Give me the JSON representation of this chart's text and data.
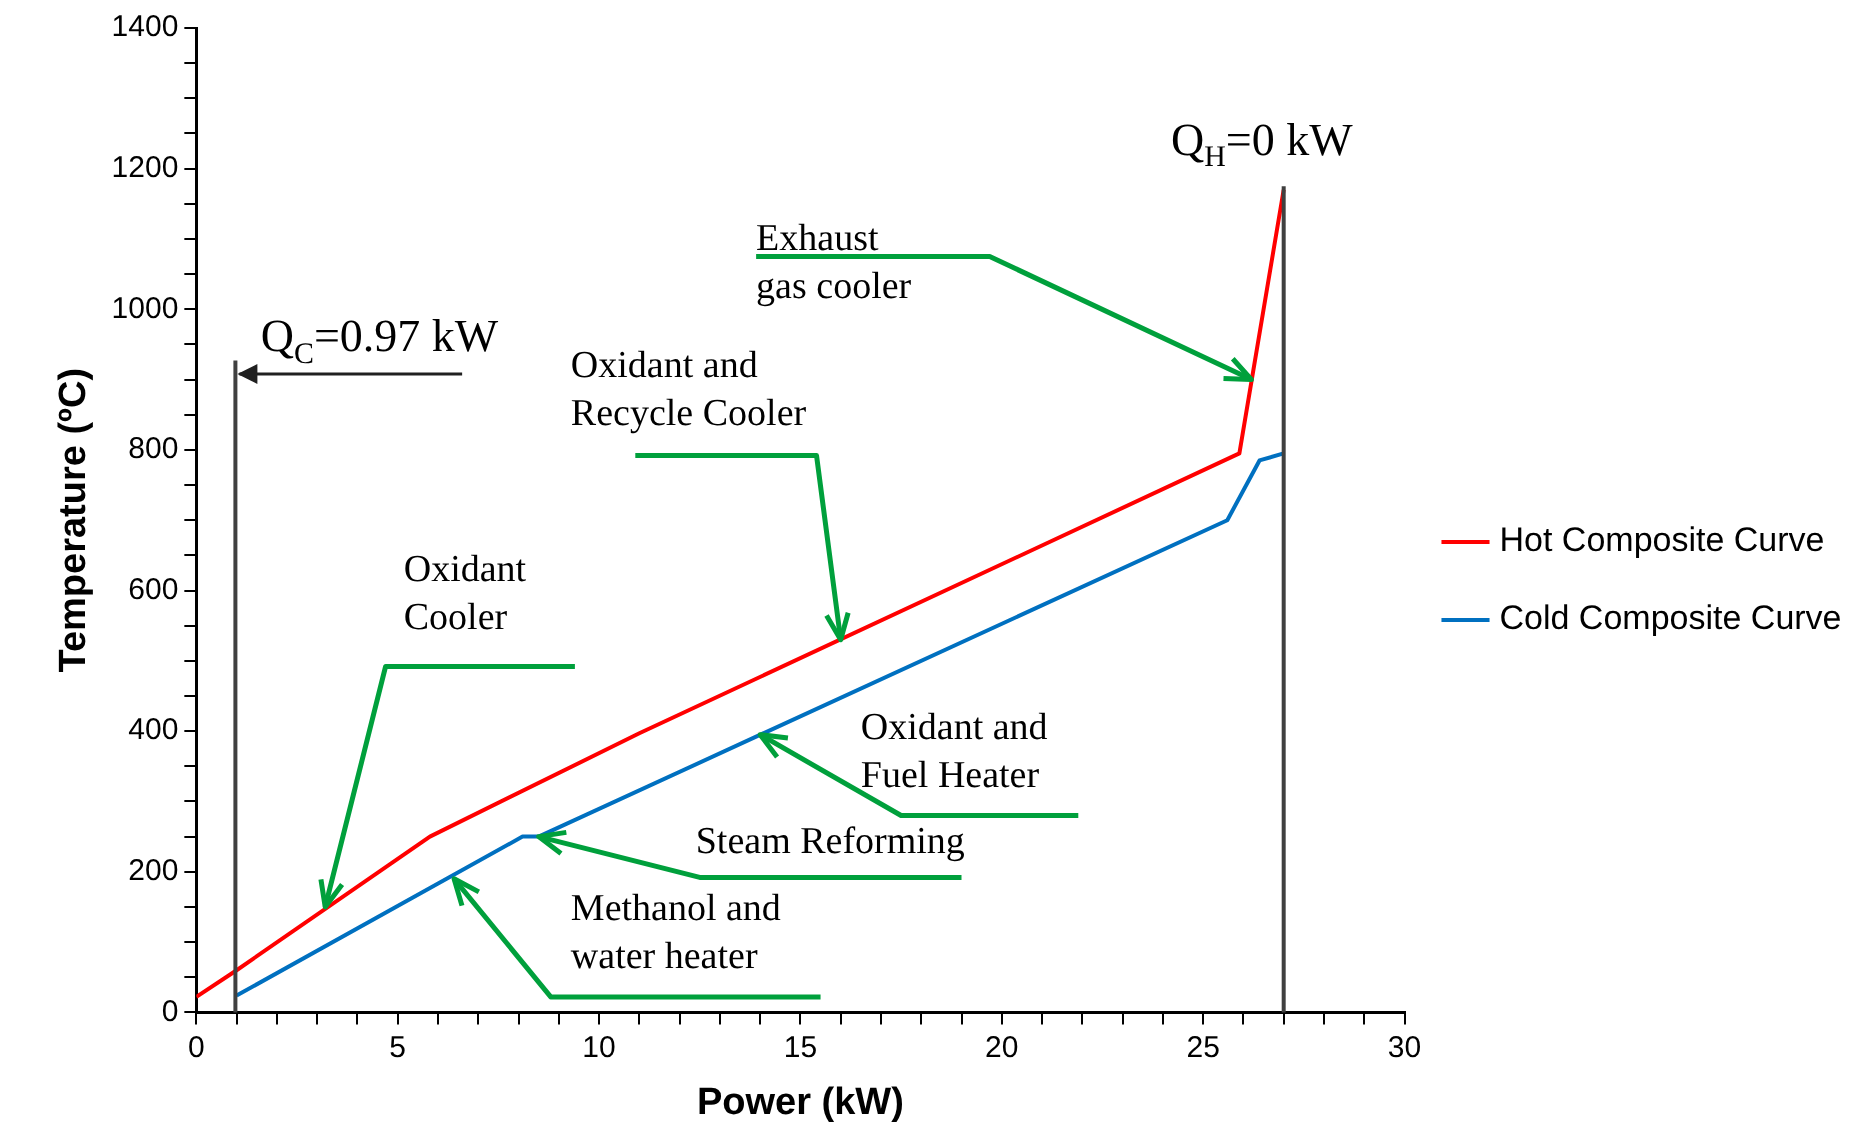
{
  "chart_data": {
    "type": "line",
    "xlabel": "Power (kW)",
    "ylabel": "Temperature (ºC)",
    "series": [
      {
        "name": "Hot Composite Curve",
        "color": "#ff0000",
        "x": [
          0,
          1,
          5.8,
          11,
          25.9,
          27
        ],
        "values": [
          22,
          60,
          250,
          397,
          795,
          1170
        ]
      },
      {
        "name": "Cold Composite Curve",
        "color": "#0070c0",
        "x": [
          1,
          8.1,
          8.5,
          25.6,
          26.4,
          27
        ],
        "values": [
          24,
          250,
          250,
          700,
          785,
          795
        ]
      }
    ],
    "xlim": [
      0,
      30
    ],
    "xticks": [
      0,
      {
        "value": 1,
        "label": null
      },
      {
        "value": 2,
        "label": null
      },
      {
        "value": 3,
        "label": null
      },
      {
        "value": 4,
        "label": null
      },
      5,
      {
        "value": 6,
        "label": null
      },
      {
        "value": 7,
        "label": null
      },
      {
        "value": 8,
        "label": null
      },
      {
        "value": 9,
        "label": null
      },
      10,
      {
        "value": 11,
        "label": null
      },
      {
        "value": 12,
        "label": null
      },
      {
        "value": 13,
        "label": null
      },
      {
        "value": 14,
        "label": null
      },
      15,
      {
        "value": 16,
        "label": null
      },
      {
        "value": 17,
        "label": null
      },
      {
        "value": 18,
        "label": null
      },
      {
        "value": 19,
        "label": null
      },
      20,
      {
        "value": 21,
        "label": null
      },
      {
        "value": 22,
        "label": null
      },
      {
        "value": 23,
        "label": null
      },
      {
        "value": 24,
        "label": null
      },
      25,
      {
        "value": 26,
        "label": null
      },
      {
        "value": 27,
        "label": null
      },
      {
        "value": 28,
        "label": null
      },
      {
        "value": 29,
        "label": null
      },
      30
    ],
    "ylim": [
      0,
      1400
    ],
    "yticks": [
      0,
      {
        "value": 50,
        "label": null
      },
      {
        "value": 100,
        "label": null
      },
      {
        "value": 150,
        "label": null
      },
      200,
      {
        "value": 250,
        "label": null
      },
      {
        "value": 300,
        "label": null
      },
      {
        "value": 350,
        "label": null
      },
      400,
      {
        "value": 450,
        "label": null
      },
      {
        "value": 500,
        "label": null
      },
      {
        "value": 550,
        "label": null
      },
      600,
      {
        "value": 650,
        "label": null
      },
      {
        "value": 700,
        "label": null
      },
      {
        "value": 750,
        "label": null
      },
      800,
      {
        "value": 850,
        "label": null
      },
      {
        "value": 900,
        "label": null
      },
      {
        "value": 950,
        "label": null
      },
      1000,
      {
        "value": 1050,
        "label": null
      },
      {
        "value": 1100,
        "label": null
      },
      {
        "value": 1150,
        "label": null
      },
      1200,
      {
        "value": 1250,
        "label": null
      },
      {
        "value": 1300,
        "label": null
      },
      {
        "value": 1350,
        "label": null
      },
      1400
    ],
    "grid": false,
    "legend": "right",
    "marker": "none",
    "line_style": "solid",
    "ref_lines": [
      {
        "axis": "x",
        "value": 0.97,
        "label": "Q$_{C}$=0.97 kW",
        "color": "#404040"
      },
      {
        "axis": "x",
        "value": 27,
        "color": "#404040"
      }
    ],
    "annotations": [
      {
        "text": "Exhaust gas cooler",
        "x": 26.2,
        "y": 900
      },
      {
        "text": "Oxidant and Recycle Cooler",
        "x": 16,
        "y": 530
      },
      {
        "text": "Oxidant Cooler",
        "x": 3.2,
        "y": 150
      },
      {
        "text": "Steam Reforming",
        "x": 8.5,
        "y": 250
      },
      {
        "text": "Methanol and water heater",
        "x": 6.4,
        "y": 190
      },
      {
        "text": "Oxidant and Fuel Heater",
        "x": 14,
        "y": 395
      },
      "Q$_{H}$=0 kW"
    ]
  }
}
